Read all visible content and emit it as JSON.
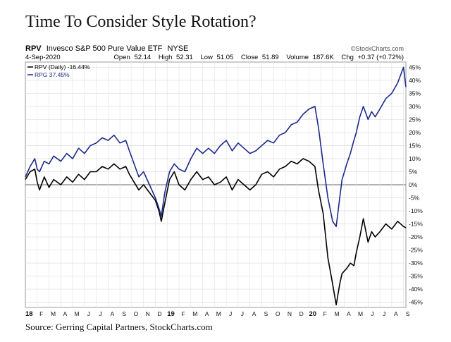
{
  "title": "Time To Consider Style Rotation?",
  "source": "Source: Gerring Capital Partners, StockCharts.com",
  "chart_data": {
    "type": "line",
    "symbol": "RPV",
    "name": "Invesco S&P 500 Pure Value ETF",
    "exchange": "NYSE",
    "date": "4-Sep-2020",
    "watermark": "©StockCharts.com",
    "quote": {
      "open_label": "Open",
      "open": "52.14",
      "high_label": "High",
      "high": "52.31",
      "low_label": "Low",
      "low": "51.05",
      "close_label": "Close",
      "close": "51.89",
      "volume_label": "Volume",
      "volume": "187.6K",
      "chg_label": "Chg",
      "chg": "+0.37 (+0.72%)"
    },
    "legend": [
      "RPV (Daily) -16.44%",
      "RPG 37.45%"
    ],
    "ylim": [
      -47,
      47
    ],
    "yticks": [
      45,
      40,
      35,
      30,
      25,
      20,
      15,
      10,
      5,
      0,
      -5,
      -10,
      -15,
      -20,
      -25,
      -30,
      -35,
      -40,
      -45
    ],
    "month_labels": [
      "18",
      "F",
      "M",
      "A",
      "M",
      "J",
      "J",
      "A",
      "S",
      "O",
      "N",
      "D",
      "19",
      "F",
      "M",
      "A",
      "M",
      "J",
      "J",
      "A",
      "S",
      "O",
      "N",
      "D",
      "20",
      "F",
      "M",
      "A",
      "M",
      "J",
      "J",
      "A",
      "S"
    ],
    "x_range": [
      0,
      32.2
    ],
    "series": [
      {
        "name": "RPV (Daily) -16.44%",
        "color": "#000000",
        "x": [
          0,
          0.4,
          0.8,
          1.0,
          1.2,
          1.6,
          2.0,
          2.4,
          3.0,
          3.5,
          4.0,
          4.5,
          5.0,
          5.5,
          6.0,
          6.5,
          7.0,
          7.5,
          8.0,
          8.5,
          8.8,
          9.2,
          9.6,
          10.0,
          10.5,
          11.0,
          11.3,
          11.5,
          11.8,
          12.2,
          12.6,
          13.0,
          13.5,
          14.0,
          14.5,
          15.0,
          15.5,
          16.0,
          16.5,
          17.0,
          17.5,
          18.0,
          18.5,
          19.0,
          19.5,
          20.0,
          20.5,
          21.0,
          21.5,
          22.0,
          22.5,
          23.0,
          23.5,
          24.0,
          24.5,
          24.8,
          25.2,
          25.6,
          26.0,
          26.3,
          26.6,
          26.8,
          27.0,
          27.2,
          27.5,
          27.8,
          28.0,
          28.3,
          28.6,
          29.0,
          29.3,
          29.6,
          30.0,
          30.5,
          31.0,
          31.5,
          32.0,
          32.2
        ],
        "values": [
          2,
          5,
          6,
          1,
          -2,
          3,
          -1,
          2,
          0,
          3,
          1,
          4,
          2,
          5,
          5,
          7,
          6,
          8,
          6,
          7,
          4,
          1,
          -2,
          0,
          -3,
          -6,
          -10,
          -14,
          -7,
          2,
          5,
          0,
          -2,
          2,
          5,
          2,
          3,
          0,
          1,
          3,
          -2,
          2,
          0,
          -2,
          0,
          4,
          5,
          3,
          6,
          7,
          9,
          8,
          10,
          9,
          7,
          -2,
          -11,
          -28,
          -38,
          -46,
          -38,
          -34,
          -33,
          -32,
          -30,
          -31,
          -26,
          -20,
          -13,
          -22,
          -18,
          -20,
          -18,
          -15,
          -17,
          -14,
          -16,
          -16.5
        ]
      },
      {
        "name": "RPG 37.45%",
        "color": "#1c2a8c",
        "x": [
          0,
          0.4,
          0.8,
          1.0,
          1.2,
          1.6,
          2.0,
          2.4,
          3.0,
          3.5,
          4.0,
          4.5,
          5.0,
          5.5,
          6.0,
          6.5,
          7.0,
          7.5,
          8.0,
          8.5,
          8.8,
          9.2,
          9.6,
          10.0,
          10.5,
          11.0,
          11.3,
          11.5,
          11.8,
          12.2,
          12.6,
          13.0,
          13.5,
          14.0,
          14.5,
          15.0,
          15.5,
          16.0,
          16.5,
          17.0,
          17.5,
          18.0,
          18.5,
          19.0,
          19.5,
          20.0,
          20.5,
          21.0,
          21.5,
          22.0,
          22.5,
          23.0,
          23.5,
          24.0,
          24.5,
          24.8,
          25.2,
          25.6,
          26.0,
          26.3,
          26.6,
          26.8,
          27.0,
          27.2,
          27.5,
          27.8,
          28.0,
          28.3,
          28.6,
          29.0,
          29.3,
          29.6,
          30.0,
          30.5,
          31.0,
          31.5,
          32.0,
          32.2
        ],
        "values": [
          3,
          7,
          10,
          6,
          5,
          9,
          8,
          11,
          9,
          12,
          10,
          14,
          12,
          15,
          16,
          18,
          17,
          19,
          16,
          17,
          13,
          8,
          3,
          5,
          0,
          -5,
          -9,
          -12,
          -3,
          5,
          8,
          6,
          5,
          10,
          14,
          12,
          14,
          12,
          15,
          17,
          13,
          16,
          14,
          12,
          13,
          15,
          17,
          16,
          19,
          20,
          23,
          24,
          27,
          29,
          30,
          22,
          8,
          -5,
          -14,
          -16,
          -5,
          2,
          5,
          8,
          12,
          17,
          20,
          26,
          30,
          25,
          28,
          26,
          29,
          33,
          35,
          39,
          45,
          37.45
        ]
      }
    ]
  }
}
